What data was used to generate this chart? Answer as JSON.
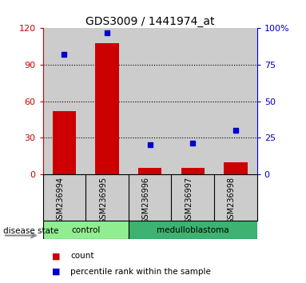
{
  "title": "GDS3009 / 1441974_at",
  "samples": [
    "GSM236994",
    "GSM236995",
    "GSM236996",
    "GSM236997",
    "GSM236998"
  ],
  "bar_values": [
    52,
    108,
    5,
    5,
    10
  ],
  "percentile_values": [
    82,
    97,
    20,
    21,
    30
  ],
  "bar_color": "#cc0000",
  "percentile_color": "#0000cc",
  "left_ylim": [
    0,
    120
  ],
  "left_yticks": [
    0,
    30,
    60,
    90,
    120
  ],
  "right_ylim": [
    0,
    100
  ],
  "right_yticks": [
    0,
    25,
    50,
    75,
    100
  ],
  "right_yticklabels": [
    "0",
    "25",
    "50",
    "75",
    "100%"
  ],
  "groups": [
    {
      "label": "control",
      "indices": [
        0,
        1
      ],
      "color": "#90ee90"
    },
    {
      "label": "medulloblastoma",
      "indices": [
        2,
        3,
        4
      ],
      "color": "#3cb371"
    }
  ],
  "disease_state_label": "disease state",
  "legend_items": [
    {
      "label": "count",
      "color": "#cc0000"
    },
    {
      "label": "percentile rank within the sample",
      "color": "#0000cc"
    }
  ],
  "bar_width": 0.55,
  "background_color": "#cccccc",
  "title_fontsize": 10,
  "tick_fontsize": 8,
  "label_fontsize": 8
}
